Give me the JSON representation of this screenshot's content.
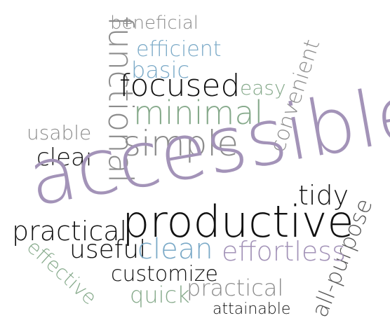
{
  "words": {
    "beneficial": "beneficial",
    "efficient": "efficient",
    "functional": "functional",
    "convenient": "convenient",
    "basic": "basic",
    "focused": "focused",
    "easy": "easy",
    "minimal": "minimal",
    "usable": "usable",
    "simple": "simple",
    "clear": "clear",
    "accessible": "accessible",
    "tidy": "tidy",
    "practical_1": "practical",
    "productive": "productive",
    "all_purpose": "all-purpose",
    "effective": "effective",
    "useful": "useful",
    "clean": "clean",
    "effortless": "effortless",
    "customize": "customize",
    "quick": "quick",
    "practical_2": "practical",
    "attainable": "attainable"
  },
  "palette": {
    "gray": "#8c8c8c",
    "blue": "#7aa9c7",
    "green": "#85a98a",
    "purple": "#a393b8",
    "black": "#111111"
  }
}
